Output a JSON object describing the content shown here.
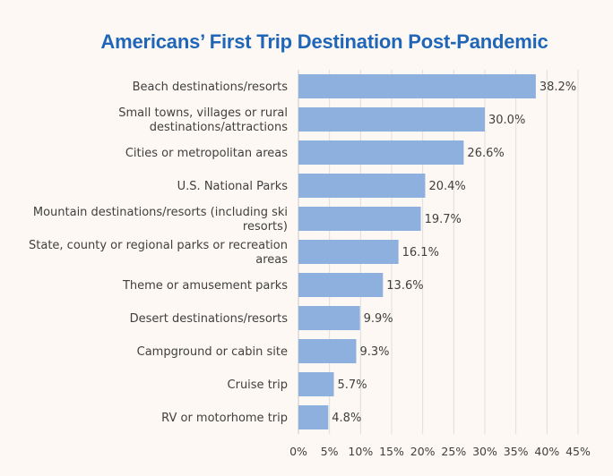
{
  "chart_data": {
    "type": "bar",
    "orientation": "horizontal",
    "title": "Americans’ First Trip Destination Post-Pandemic",
    "xlabel": "",
    "ylabel": "",
    "xlim": [
      0,
      45
    ],
    "grid": true,
    "bar_color": "#8eb0de",
    "categories": [
      "Beach destinations/resorts",
      "Small towns, villages or rural destinations/attractions",
      "Cities or metropolitan areas",
      "U.S. National Parks",
      "Mountain destinations/resorts (including ski resorts)",
      "State, county or regional parks or recreation areas",
      "Theme or amusement parks",
      "Desert destinations/resorts",
      "Campground or cabin site",
      "Cruise trip",
      "RV or motorhome trip"
    ],
    "category_lines": [
      [
        "Beach destinations/resorts"
      ],
      [
        "Small towns, villages or rural",
        "destinations/attractions"
      ],
      [
        "Cities or metropolitan areas"
      ],
      [
        "U.S. National Parks"
      ],
      [
        "Mountain destinations/resorts (including ski",
        "resorts)"
      ],
      [
        "State, county or regional parks or recreation",
        "areas"
      ],
      [
        "Theme or amusement parks"
      ],
      [
        "Desert destinations/resorts"
      ],
      [
        "Campground or cabin site"
      ],
      [
        "Cruise trip"
      ],
      [
        "RV or motorhome trip"
      ]
    ],
    "values": [
      38.2,
      30.0,
      26.6,
      20.4,
      19.7,
      16.1,
      13.6,
      9.9,
      9.3,
      5.7,
      4.8
    ],
    "value_labels": [
      "38.2%",
      "30.0%",
      "26.6%",
      "20.4%",
      "19.7%",
      "16.1%",
      "13.6%",
      "9.9%",
      "9.3%",
      "5.7%",
      "4.8%"
    ],
    "x_ticks": [
      0,
      5,
      10,
      15,
      20,
      25,
      30,
      35,
      40,
      45
    ],
    "x_tick_labels": [
      "0%",
      "5%",
      "10%",
      "15%",
      "20%",
      "25%",
      "30%",
      "35%",
      "40%",
      "45%"
    ]
  }
}
